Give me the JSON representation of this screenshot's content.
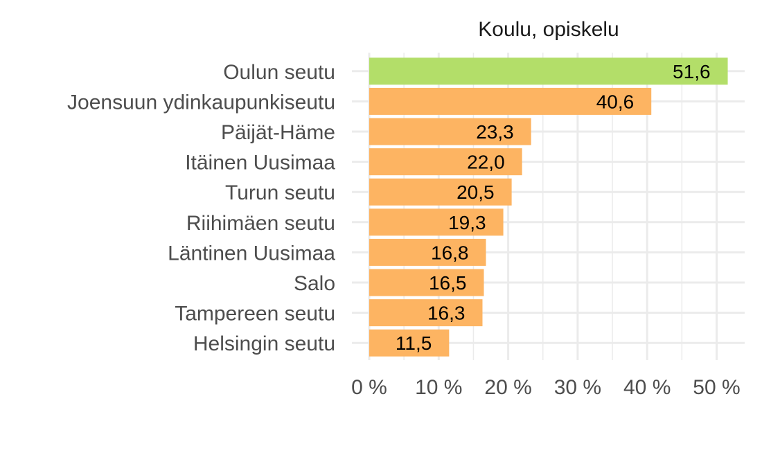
{
  "chart_data": {
    "type": "bar",
    "orientation": "horizontal",
    "title": "Koulu, opiskelu",
    "categories": [
      "Oulun seutu",
      "Joensuun ydinkaupunkiseutu",
      "Päijät-Häme",
      "Itäinen Uusimaa",
      "Turun seutu",
      "Riihimäen seutu",
      "Läntinen Uusimaa",
      "Salo",
      "Tampereen seutu",
      "Helsingin seutu"
    ],
    "values": [
      51.6,
      40.6,
      23.3,
      22.0,
      20.5,
      19.3,
      16.8,
      16.5,
      16.3,
      11.5
    ],
    "value_labels": [
      "51,6",
      "40,6",
      "23,3",
      "22,0",
      "20,5",
      "19,3",
      "16,8",
      "16,5",
      "16,3",
      "11,5"
    ],
    "highlight_index": 0,
    "xlim": [
      0,
      54
    ],
    "x_ticks": [
      0,
      10,
      20,
      30,
      40,
      50
    ],
    "x_tick_labels": [
      "0 %",
      "10 %",
      "20 %",
      "30 %",
      "40 %",
      "50 %"
    ],
    "left_edge_fragment": "%",
    "grid": true,
    "legend": "none",
    "colors": {
      "highlight": "#b3de69",
      "bar": "#fdb462",
      "grid": "#ebebeb",
      "axis_text": "#4d4d4d",
      "title_text": "#1a1a1a"
    }
  }
}
